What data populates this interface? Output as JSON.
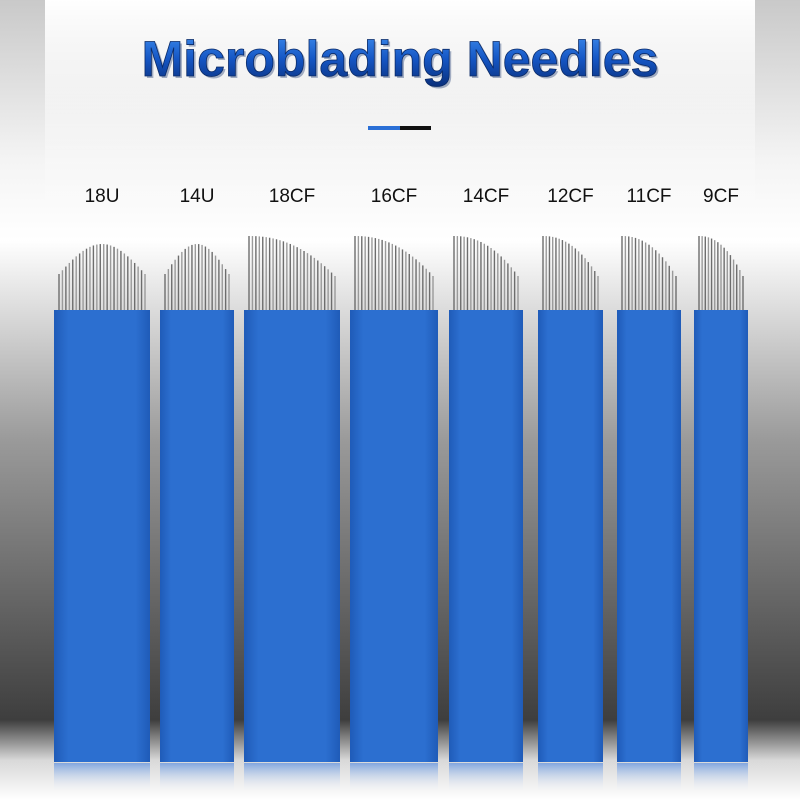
{
  "header": {
    "title": "Microblading Needles"
  },
  "labels": [
    "18U",
    "14U",
    "18CF",
    "16CF",
    "14CF",
    "12CF",
    "11CF",
    "9CF"
  ]
}
